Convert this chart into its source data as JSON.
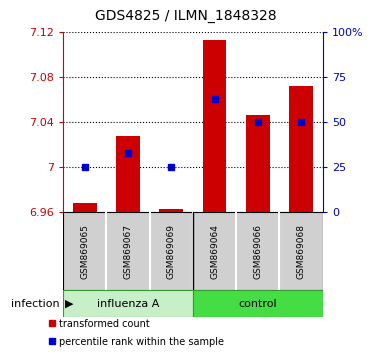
{
  "title": "GDS4825 / ILMN_1848328",
  "samples": [
    "GSM869065",
    "GSM869067",
    "GSM869069",
    "GSM869064",
    "GSM869066",
    "GSM869068"
  ],
  "bar_values": [
    6.968,
    7.028,
    6.963,
    7.113,
    7.046,
    7.072
  ],
  "bar_base": 6.96,
  "percentile_values": [
    25,
    33,
    25,
    63,
    50,
    50
  ],
  "ylim": [
    6.96,
    7.12
  ],
  "yticks": [
    6.96,
    7.0,
    7.04,
    7.08,
    7.12
  ],
  "ytick_labels": [
    "6.96",
    "7",
    "7.04",
    "7.08",
    "7.12"
  ],
  "right_yticks": [
    0,
    25,
    50,
    75,
    100
  ],
  "right_ytick_labels": [
    "0",
    "25",
    "50",
    "75",
    "100%"
  ],
  "bar_color": "#cc0000",
  "dot_color": "#0000cc",
  "left_axis_color": "#cc0000",
  "right_axis_color": "#0000cc",
  "sample_bg_color": "#d0d0d0",
  "influenza_color": "#c8f0c8",
  "control_color": "#44dd44",
  "legend_items": [
    "transformed count",
    "percentile rank within the sample"
  ],
  "infection_label": "infection"
}
